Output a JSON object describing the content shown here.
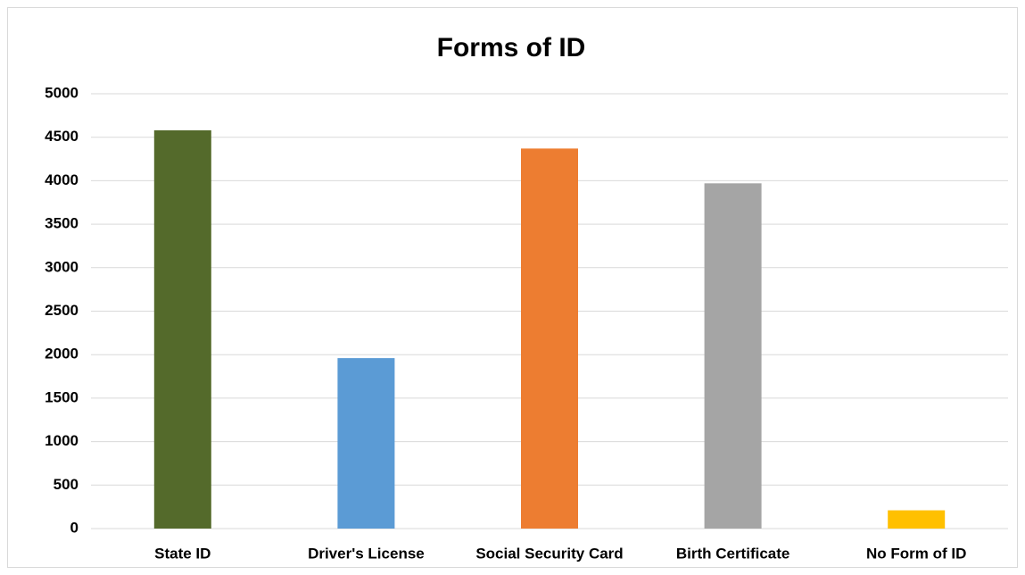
{
  "chart_data": {
    "type": "bar",
    "title": "Forms of ID",
    "categories": [
      "State ID",
      "Driver's License",
      "Social Security Card",
      "Birth Certificate",
      "No Form of ID"
    ],
    "values": [
      4580,
      1960,
      4370,
      3970,
      210
    ],
    "colors": [
      "#546a2b",
      "#5b9bd5",
      "#ed7d31",
      "#a5a5a5",
      "#ffc000"
    ],
    "ylim": [
      0,
      5000
    ],
    "yticks": [
      0,
      500,
      1000,
      1500,
      2000,
      2500,
      3000,
      3500,
      4000,
      4500,
      5000
    ],
    "grid": true
  }
}
